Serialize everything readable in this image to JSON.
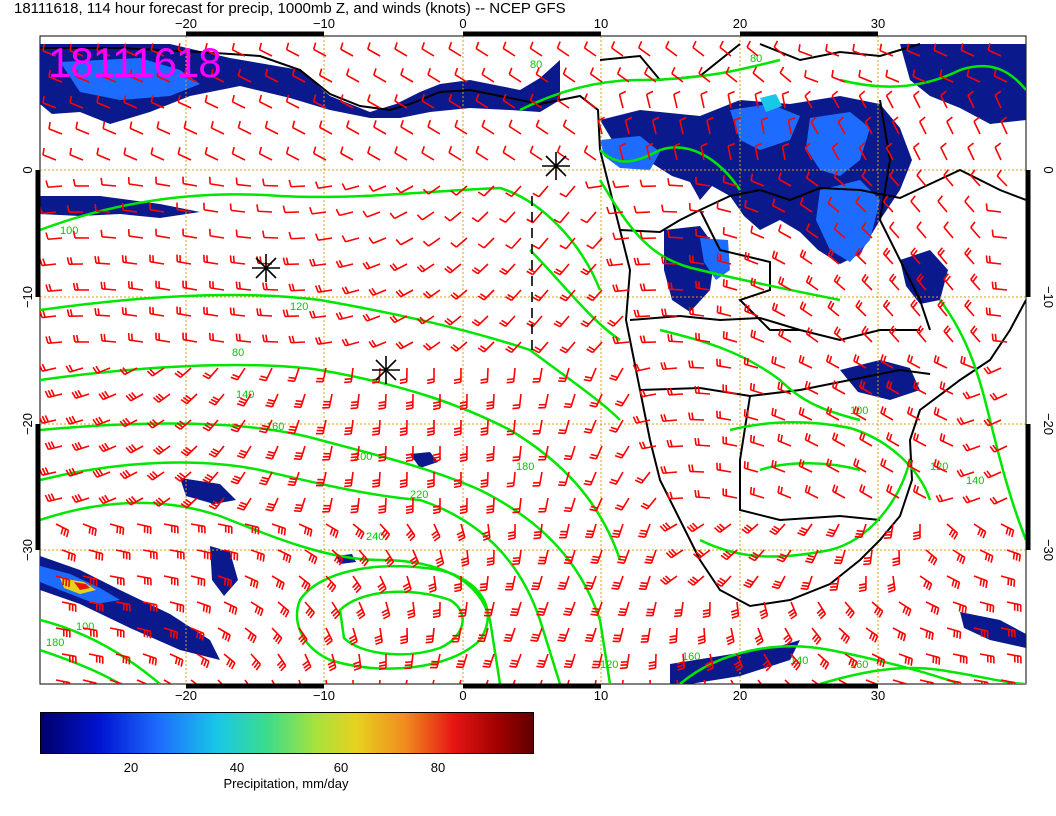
{
  "title": "18111618, 114 hour forecast for precip, 1000mb Z, and winds (knots) -- NCEP GFS",
  "valid_stamp": "18111618",
  "map": {
    "lon_range": [
      -31,
      40
    ],
    "lat_range": [
      -40,
      10
    ],
    "x_ticks": [
      "−20",
      "−10",
      "0",
      "10",
      "20",
      "30"
    ],
    "y_ticks": [
      "0",
      "−10",
      "−20",
      "−30"
    ],
    "colors": {
      "precip_dark": "#0a1a8c",
      "precip_mid": "#1e6cff",
      "precip_light": "#18c8e6",
      "contour": "#00e600",
      "wind_barb": "#ff0000",
      "coast": "#000000",
      "grid": "#d4a017"
    },
    "contour_labels": [
      "80",
      "100",
      "120",
      "140",
      "160",
      "180",
      "200",
      "220",
      "240"
    ],
    "pressure_centers": [
      "high-west-1",
      "high-west-2",
      "high-south",
      "low-coast"
    ]
  },
  "colorbar": {
    "ticks": [
      "20",
      "40",
      "60",
      "80"
    ],
    "label": "Precipitation, mm/day",
    "icon": "colorbar-gradient"
  }
}
